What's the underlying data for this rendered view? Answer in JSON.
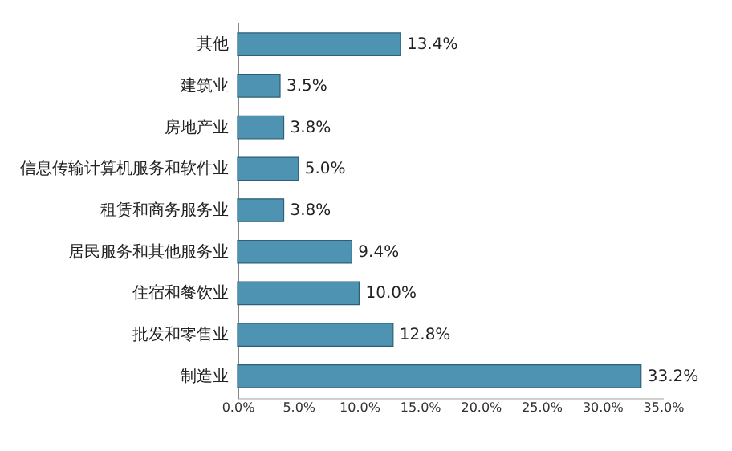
{
  "chart_data": {
    "type": "bar",
    "orientation": "horizontal",
    "categories": [
      "其他",
      "建筑业",
      "房地产业",
      "信息传输计算机服务和软件业",
      "租赁和商务服务业",
      "居民服务和其他服务业",
      "住宿和餐饮业",
      "批发和零售业",
      "制造业"
    ],
    "values": [
      13.4,
      3.5,
      3.8,
      5.0,
      3.8,
      9.4,
      10.0,
      12.8,
      33.2
    ],
    "value_labels": [
      "13.4%",
      "3.5%",
      "3.8%",
      "5.0%",
      "3.8%",
      "9.4%",
      "10.0%",
      "12.8%",
      "33.2%"
    ],
    "color": "#4f93b3",
    "xlim": [
      0,
      35
    ],
    "xticks": [
      {
        "value": 0,
        "label": "0.0%"
      },
      {
        "value": 5,
        "label": "5.0%"
      },
      {
        "value": 10,
        "label": "10.0%"
      },
      {
        "value": 15,
        "label": "15.0%"
      },
      {
        "value": 20,
        "label": "20.0%"
      },
      {
        "value": 25,
        "label": "25.0%"
      },
      {
        "value": 30,
        "label": "30.0%"
      },
      {
        "value": 35,
        "label": "35.0%"
      }
    ]
  }
}
